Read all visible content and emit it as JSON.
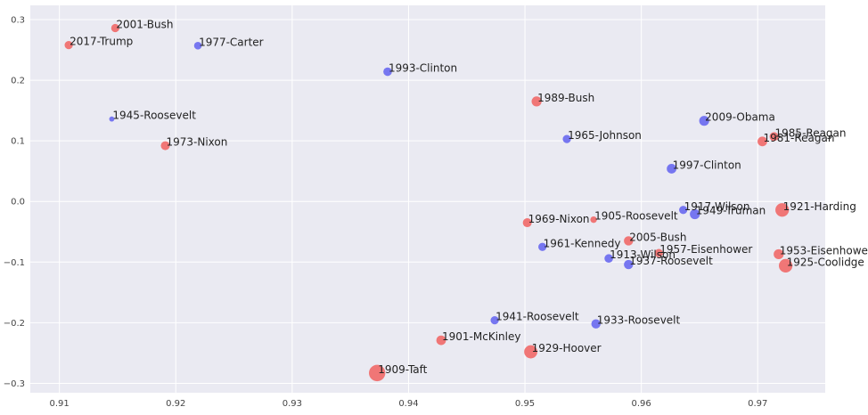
{
  "chart_data": {
    "type": "scatter",
    "title": "",
    "xlabel": "",
    "ylabel": "",
    "xlim": [
      0.9075,
      0.9758
    ],
    "ylim": [
      -0.3155,
      0.3235
    ],
    "xticks": [
      0.91,
      0.92,
      0.93,
      0.94,
      0.95,
      0.96,
      0.97
    ],
    "xtick_labels": [
      "0.91",
      "0.92",
      "0.93",
      "0.94",
      "0.95",
      "0.96",
      "0.97"
    ],
    "yticks": [
      -0.3,
      -0.2,
      -0.1,
      0.0,
      0.1,
      0.2,
      0.3
    ],
    "ytick_labels": [
      "−0.3",
      "−0.2",
      "−0.1",
      "0.0",
      "0.1",
      "0.2",
      "0.3"
    ],
    "grid": true,
    "colors": {
      "republican": "#f06b6b",
      "democrat": "#6b6bf0",
      "background": "#eaeaf2",
      "grid": "#ffffff"
    },
    "points": [
      {
        "label": "2001-Bush",
        "x": 0.9148,
        "y": 0.286,
        "size": 4.6,
        "party": "republican"
      },
      {
        "label": "2017-Trump",
        "x": 0.9108,
        "y": 0.258,
        "size": 4.6,
        "party": "republican"
      },
      {
        "label": "1977-Carter",
        "x": 0.9219,
        "y": 0.257,
        "size": 4.3,
        "party": "democrat"
      },
      {
        "label": "1993-Clinton",
        "x": 0.9382,
        "y": 0.214,
        "size": 4.8,
        "party": "democrat"
      },
      {
        "label": "1989-Bush",
        "x": 0.951,
        "y": 0.165,
        "size": 5.6,
        "party": "republican"
      },
      {
        "label": "1945-Roosevelt",
        "x": 0.9145,
        "y": 0.136,
        "size": 2.9,
        "party": "democrat"
      },
      {
        "label": "2009-Obama",
        "x": 0.9654,
        "y": 0.133,
        "size": 5.6,
        "party": "democrat"
      },
      {
        "label": "1985-Reagan",
        "x": 0.9714,
        "y": 0.107,
        "size": 5.0,
        "party": "republican"
      },
      {
        "label": "1981-Reagan",
        "x": 0.9704,
        "y": 0.099,
        "size": 5.4,
        "party": "republican"
      },
      {
        "label": "1973-Nixon",
        "x": 0.9191,
        "y": 0.092,
        "size": 5.0,
        "party": "republican"
      },
      {
        "label": "1965-Johnson",
        "x": 0.9536,
        "y": 0.103,
        "size": 4.6,
        "party": "democrat"
      },
      {
        "label": "1997-Clinton",
        "x": 0.9626,
        "y": 0.054,
        "size": 5.4,
        "party": "democrat"
      },
      {
        "label": "1917-Wilson",
        "x": 0.9636,
        "y": -0.014,
        "size": 4.6,
        "party": "democrat"
      },
      {
        "label": "1949-Truman",
        "x": 0.9646,
        "y": -0.021,
        "size": 5.6,
        "party": "democrat"
      },
      {
        "label": "1921-Harding",
        "x": 0.9721,
        "y": -0.014,
        "size": 7.6,
        "party": "republican"
      },
      {
        "label": "1969-Nixon",
        "x": 0.9502,
        "y": -0.035,
        "size": 5.0,
        "party": "republican"
      },
      {
        "label": "1905-Roosevelt",
        "x": 0.9559,
        "y": -0.03,
        "size": 3.7,
        "party": "republican"
      },
      {
        "label": "2005-Bush",
        "x": 0.9589,
        "y": -0.065,
        "size": 5.2,
        "party": "republican"
      },
      {
        "label": "1961-Kennedy",
        "x": 0.9515,
        "y": -0.075,
        "size": 4.6,
        "party": "democrat"
      },
      {
        "label": "1957-Eisenhower",
        "x": 0.9615,
        "y": -0.085,
        "size": 4.6,
        "party": "republican"
      },
      {
        "label": "1953-Eisenhower",
        "x": 0.9718,
        "y": -0.087,
        "size": 5.6,
        "party": "republican"
      },
      {
        "label": "1913-Wilson",
        "x": 0.9572,
        "y": -0.094,
        "size": 4.8,
        "party": "democrat"
      },
      {
        "label": "1937-Roosevelt",
        "x": 0.9589,
        "y": -0.104,
        "size": 5.2,
        "party": "democrat"
      },
      {
        "label": "1925-Coolidge",
        "x": 0.9724,
        "y": -0.106,
        "size": 7.6,
        "party": "republican"
      },
      {
        "label": "1941-Roosevelt",
        "x": 0.9474,
        "y": -0.196,
        "size": 4.6,
        "party": "democrat"
      },
      {
        "label": "1933-Roosevelt",
        "x": 0.9561,
        "y": -0.202,
        "size": 5.2,
        "party": "democrat"
      },
      {
        "label": "1901-McKinley",
        "x": 0.9428,
        "y": -0.229,
        "size": 5.4,
        "party": "republican"
      },
      {
        "label": "1929-Hoover",
        "x": 0.9505,
        "y": -0.248,
        "size": 7.4,
        "party": "republican"
      },
      {
        "label": "1909-Taft",
        "x": 0.9373,
        "y": -0.283,
        "size": 9.2,
        "party": "republican"
      }
    ]
  }
}
